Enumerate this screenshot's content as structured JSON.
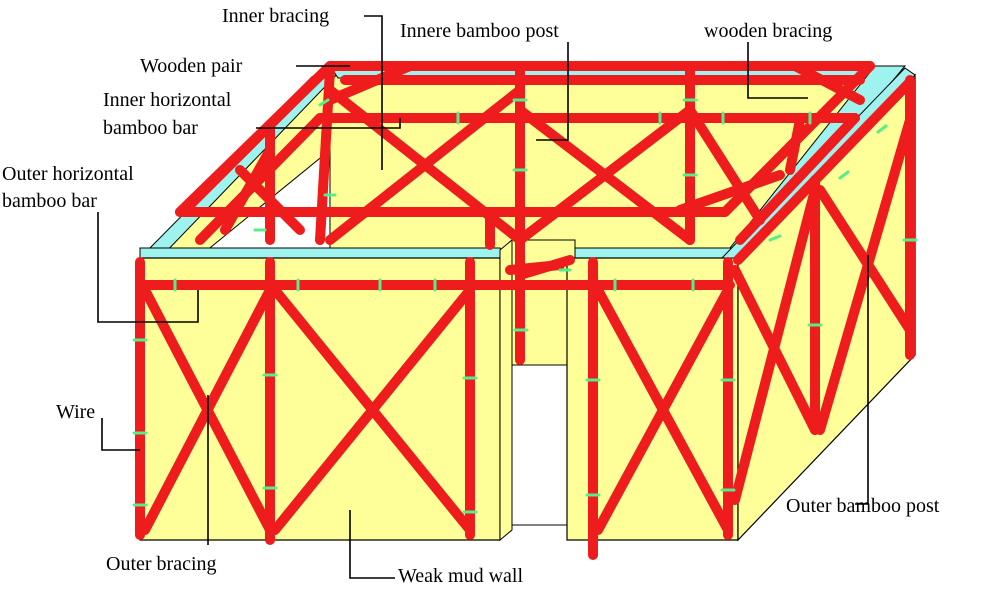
{
  "labels": {
    "inner_bracing": "Inner bracing",
    "inner_bamboo_post": "Innere bamboo post",
    "wooden_bracing": "wooden bracing",
    "wooden_pair": "Wooden pair",
    "inner_horizontal_line1": "Inner horizontal",
    "inner_horizontal_line2": "bamboo bar",
    "outer_horizontal_line1": "Outer horizontal",
    "outer_horizontal_line2": "bamboo bar",
    "wire": "Wire",
    "outer_bracing": "Outer bracing",
    "weak_mud_wall": "Weak mud wall",
    "outer_bamboo_post": "Outer bamboo post"
  },
  "colors": {
    "bamboo": "#ee1c1c",
    "wall_face": "#ffff99",
    "wall_top": "#9ff3ef",
    "wire": "#55ee88",
    "outline": "#000000",
    "background": "#ffffff"
  }
}
